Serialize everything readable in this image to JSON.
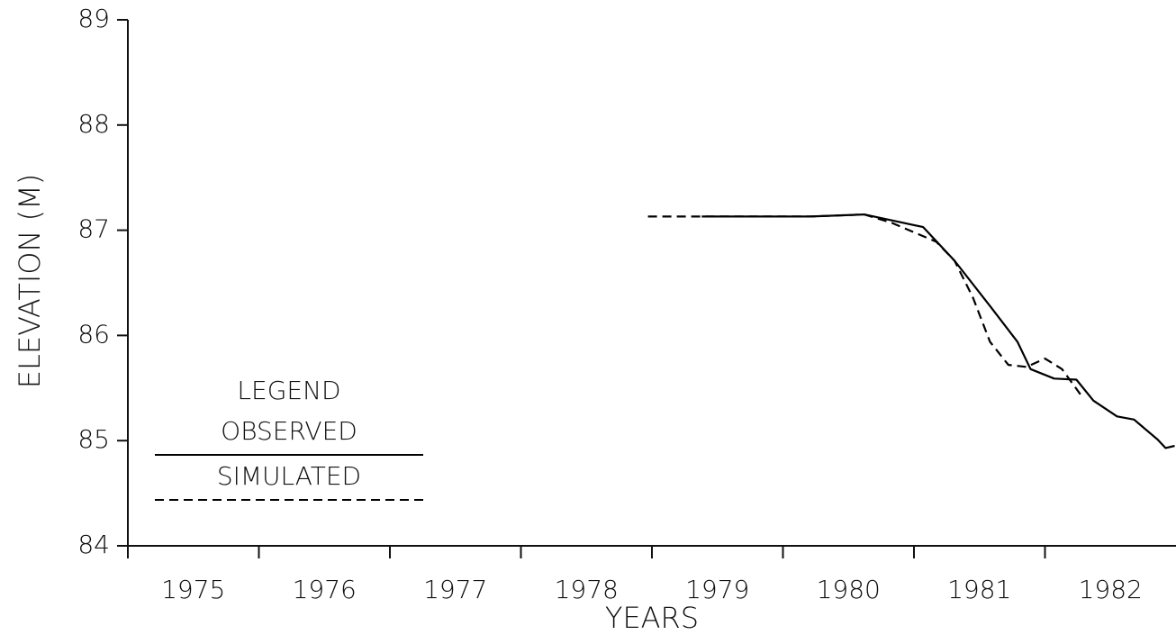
{
  "chart_data": {
    "type": "line",
    "xlabel": "YEARS",
    "ylabel": "ELEVATION (M)",
    "xlim": [
      1975,
      1983
    ],
    "xticks": [
      {
        "value": 1975.5,
        "label": "1975"
      },
      {
        "value": 1976.5,
        "label": "1976"
      },
      {
        "value": 1977.5,
        "label": "1977"
      },
      {
        "value": 1978.5,
        "label": "1978"
      },
      {
        "value": 1979.5,
        "label": "1979"
      },
      {
        "value": 1980.5,
        "label": "1980"
      },
      {
        "value": 1981.5,
        "label": "1981"
      },
      {
        "value": 1982.5,
        "label": "1982"
      }
    ],
    "ylim": [
      84,
      89
    ],
    "yticks": [
      84,
      85,
      86,
      87,
      88,
      89
    ],
    "legend_title": "LEGEND",
    "legend": "lower left",
    "series": [
      {
        "name": "OBSERVED",
        "color": "#000000",
        "dash": false,
        "x": [
          1979.38,
          1980.21,
          1980.62,
          1981.07,
          1981.31,
          1981.58,
          1981.79,
          1981.89,
          1982.07,
          1982.24,
          1982.37,
          1982.55,
          1982.68,
          1982.86,
          1982.92,
          1982.99
        ],
        "values": [
          87.13,
          87.13,
          87.15,
          87.03,
          86.71,
          86.28,
          85.94,
          85.68,
          85.59,
          85.58,
          85.38,
          85.23,
          85.2,
          85.01,
          84.93,
          84.95
        ]
      },
      {
        "name": "SIMULATED",
        "color": "#000000",
        "dash": true,
        "x": [
          1978.97,
          1980.21,
          1980.62,
          1980.83,
          1981.17,
          1981.31,
          1981.45,
          1981.58,
          1981.72,
          1981.86,
          1982.0,
          1982.13,
          1982.27
        ],
        "values": [
          87.13,
          87.13,
          87.15,
          87.07,
          86.89,
          86.71,
          86.36,
          85.94,
          85.72,
          85.7,
          85.78,
          85.68,
          85.44
        ]
      }
    ]
  }
}
